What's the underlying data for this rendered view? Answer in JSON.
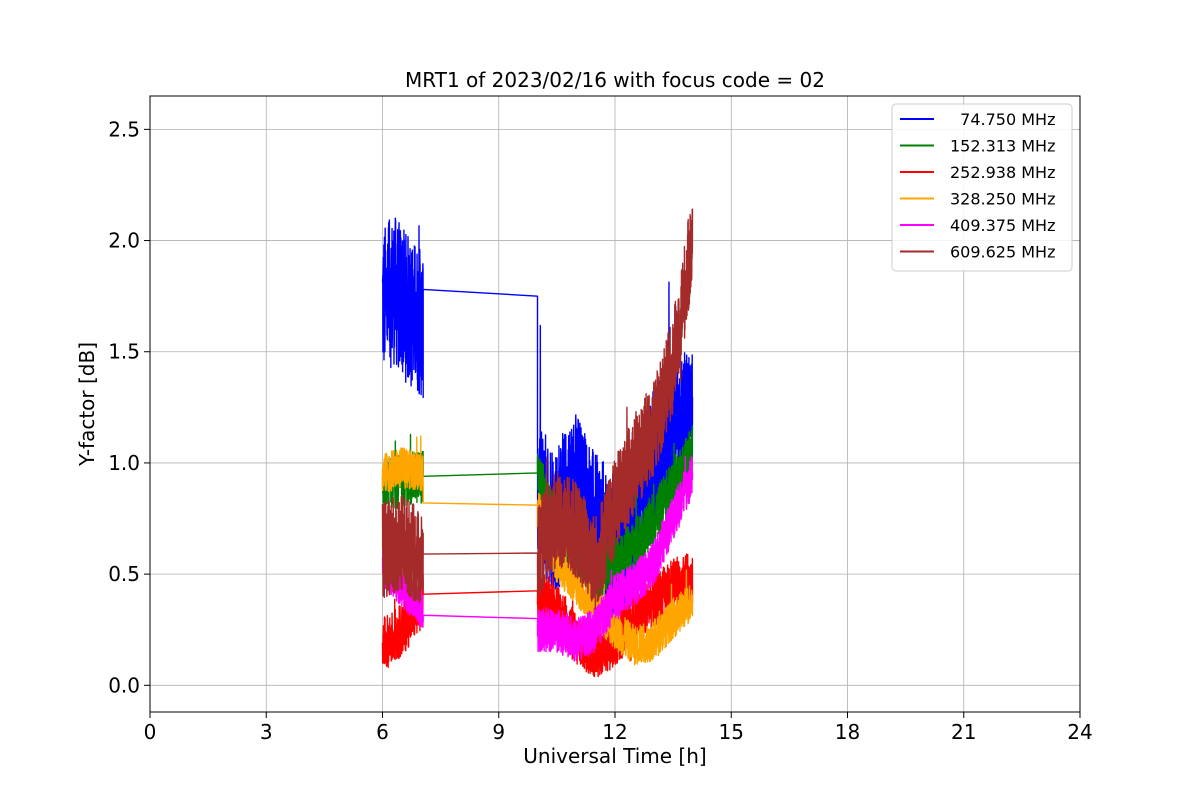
{
  "chart_data": {
    "type": "line",
    "title": "MRT1 of 2023/02/16 with focus code = 02",
    "xlabel": "Universal Time [h]",
    "ylabel": "Y-factor [dB]",
    "xlim": [
      0,
      24
    ],
    "ylim": [
      -0.12,
      2.65
    ],
    "xticks": [
      0,
      3,
      6,
      9,
      12,
      15,
      18,
      21,
      24
    ],
    "yticks": [
      0.0,
      0.5,
      1.0,
      1.5,
      2.0,
      2.5
    ],
    "xtick_labels": [
      "0",
      "3",
      "6",
      "9",
      "12",
      "15",
      "18",
      "21",
      "24"
    ],
    "ytick_labels": [
      "0.0",
      "0.5",
      "1.0",
      "1.5",
      "2.0",
      "2.5"
    ],
    "grid": true,
    "legend_position": "upper right",
    "observation_windows": [
      [
        6.0,
        7.05
      ],
      [
        10.0,
        14.0
      ]
    ],
    "series": [
      {
        "name": "74.750 MHz",
        "label": "  74.750 MHz",
        "color": "#0000ff",
        "spread": 0.34,
        "x": [
          6.0,
          6.3,
          6.6,
          7.05,
          10.0,
          10.5,
          11.0,
          11.5,
          12.0,
          12.5,
          13.0,
          13.5,
          14.0
        ],
        "y": [
          1.72,
          1.78,
          1.7,
          1.62,
          0.85,
          0.75,
          0.9,
          0.7,
          0.62,
          0.75,
          1.0,
          1.2,
          1.15
        ],
        "gap_y": [
          1.78,
          1.75
        ]
      },
      {
        "name": "152.313 MHz",
        "label": "152.313 MHz",
        "color": "#008000",
        "spread": 0.12,
        "x": [
          6.0,
          6.5,
          7.05,
          10.0,
          10.5,
          11.0,
          11.5,
          12.0,
          12.5,
          13.0,
          13.5,
          14.0
        ],
        "y": [
          0.9,
          0.92,
          0.94,
          0.95,
          0.7,
          0.6,
          0.5,
          0.55,
          0.62,
          0.75,
          0.9,
          1.05
        ],
        "gap_y": [
          0.94,
          0.955
        ]
      },
      {
        "name": "252.938 MHz",
        "label": "252.938 MHz",
        "color": "#ff0000",
        "spread": 0.12,
        "x": [
          6.0,
          6.5,
          7.05,
          10.0,
          10.5,
          11.0,
          11.5,
          12.0,
          12.5,
          13.0,
          13.5,
          14.0
        ],
        "y": [
          0.18,
          0.25,
          0.38,
          0.4,
          0.35,
          0.2,
          0.15,
          0.2,
          0.3,
          0.38,
          0.45,
          0.48
        ],
        "gap_y": [
          0.41,
          0.425
        ]
      },
      {
        "name": "328.250 MHz",
        "label": "328.250 MHz",
        "color": "#ffa500",
        "spread": 0.09,
        "x": [
          6.0,
          6.5,
          7.05,
          10.0,
          10.5,
          11.0,
          11.5,
          12.0,
          12.5,
          13.0,
          13.5,
          14.0
        ],
        "y": [
          0.95,
          0.98,
          0.96,
          0.8,
          0.55,
          0.45,
          0.35,
          0.25,
          0.18,
          0.2,
          0.3,
          0.38
        ],
        "gap_y": [
          0.82,
          0.81
        ]
      },
      {
        "name": "409.375 MHz",
        "label": "409.375 MHz",
        "color": "#ff00ff",
        "spread": 0.1,
        "x": [
          6.0,
          6.5,
          7.05,
          10.0,
          10.5,
          11.0,
          11.5,
          12.0,
          12.5,
          13.0,
          13.5,
          14.0
        ],
        "y": [
          0.55,
          0.45,
          0.35,
          0.25,
          0.25,
          0.2,
          0.25,
          0.4,
          0.45,
          0.55,
          0.75,
          0.95
        ],
        "gap_y": [
          0.315,
          0.3
        ]
      },
      {
        "name": "609.625 MHz",
        "label": "609.625 MHz",
        "color": "#a52a2a",
        "spread": 0.22,
        "x": [
          6.0,
          6.5,
          7.05,
          10.0,
          10.5,
          11.0,
          11.5,
          12.0,
          12.5,
          13.0,
          13.5,
          14.0
        ],
        "y": [
          0.6,
          0.65,
          0.55,
          0.6,
          0.75,
          0.7,
          0.55,
          0.8,
          1.0,
          1.15,
          1.45,
          2.0
        ],
        "gap_y": [
          0.59,
          0.595
        ]
      }
    ]
  }
}
